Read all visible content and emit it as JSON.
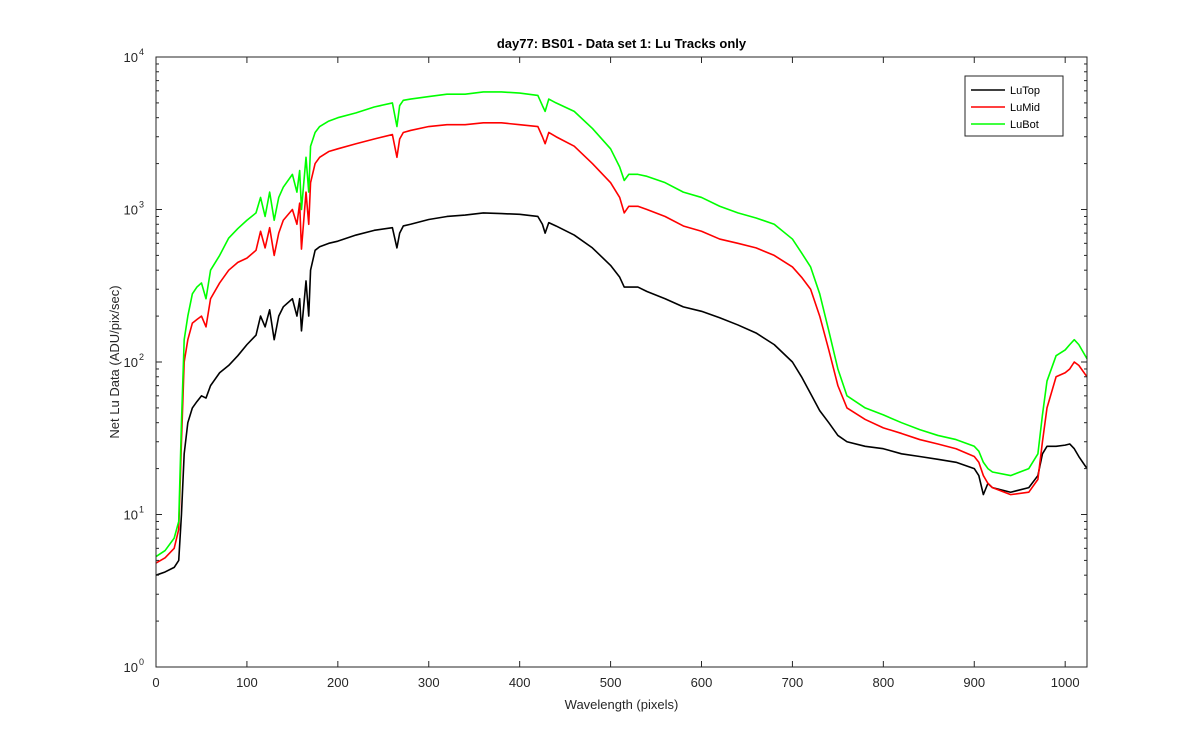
{
  "chart_data": {
    "type": "line",
    "title": "day77: BS01 - Data set 1: Lu Tracks only",
    "xlabel": "Wavelength (pixels)",
    "ylabel": "Net Lu Data (ADU/pix/sec)",
    "xlim": [
      0,
      1024
    ],
    "ylim": [
      1,
      10000
    ],
    "yscale": "log",
    "grid": false,
    "legend_position": "top-right",
    "x_ticks": [
      0,
      100,
      200,
      300,
      400,
      500,
      600,
      700,
      800,
      900,
      1000
    ],
    "y_ticks": [
      {
        "value": 1,
        "base": "10",
        "exp": "0"
      },
      {
        "value": 10,
        "base": "10",
        "exp": "1"
      },
      {
        "value": 100,
        "base": "10",
        "exp": "2"
      },
      {
        "value": 1000,
        "base": "10",
        "exp": "3"
      },
      {
        "value": 10000,
        "base": "10",
        "exp": "4"
      }
    ],
    "series": [
      {
        "name": "LuTop",
        "color": "#000000",
        "x": [
          0,
          10,
          20,
          25,
          28,
          31,
          35,
          40,
          45,
          50,
          55,
          60,
          70,
          80,
          90,
          100,
          110,
          115,
          120,
          125,
          130,
          135,
          140,
          150,
          155,
          158,
          160,
          165,
          168,
          170,
          175,
          180,
          190,
          200,
          220,
          240,
          260,
          265,
          268,
          272,
          280,
          300,
          320,
          340,
          360,
          380,
          400,
          420,
          425,
          428,
          432,
          440,
          460,
          480,
          500,
          510,
          515,
          520,
          530,
          540,
          560,
          580,
          600,
          620,
          640,
          660,
          680,
          700,
          710,
          720,
          730,
          740,
          750,
          760,
          780,
          800,
          820,
          840,
          860,
          880,
          900,
          905,
          910,
          915,
          920,
          940,
          960,
          970,
          975,
          980,
          990,
          1000,
          1005,
          1010,
          1015,
          1024
        ],
        "values": [
          4.0,
          4.2,
          4.5,
          5.0,
          10,
          25,
          40,
          50,
          55,
          60,
          58,
          70,
          85,
          95,
          110,
          130,
          150,
          200,
          170,
          220,
          140,
          200,
          230,
          260,
          200,
          260,
          160,
          340,
          200,
          400,
          540,
          570,
          600,
          620,
          680,
          730,
          760,
          560,
          700,
          780,
          800,
          860,
          900,
          920,
          950,
          940,
          930,
          900,
          800,
          700,
          820,
          780,
          680,
          560,
          430,
          360,
          310,
          310,
          310,
          290,
          260,
          230,
          215,
          195,
          175,
          155,
          130,
          100,
          80,
          62,
          48,
          40,
          33,
          30,
          28,
          27,
          25,
          24,
          23,
          22,
          20,
          18,
          13.5,
          16,
          15,
          14,
          15,
          18,
          25,
          28,
          28,
          28.5,
          29,
          27,
          24,
          20
        ]
      },
      {
        "name": "LuMid",
        "color": "#ff0000",
        "x": [
          0,
          10,
          20,
          25,
          28,
          31,
          35,
          40,
          45,
          50,
          55,
          60,
          70,
          80,
          90,
          100,
          110,
          115,
          120,
          125,
          130,
          135,
          140,
          150,
          155,
          158,
          160,
          165,
          168,
          170,
          175,
          180,
          190,
          200,
          220,
          240,
          260,
          265,
          268,
          272,
          280,
          300,
          320,
          340,
          360,
          380,
          400,
          420,
          425,
          428,
          432,
          440,
          460,
          480,
          500,
          510,
          515,
          520,
          530,
          540,
          560,
          580,
          600,
          620,
          640,
          660,
          680,
          700,
          710,
          720,
          730,
          740,
          750,
          760,
          780,
          800,
          820,
          840,
          860,
          880,
          900,
          905,
          910,
          915,
          920,
          940,
          960,
          970,
          975,
          980,
          990,
          1000,
          1005,
          1010,
          1015,
          1024
        ],
        "values": [
          4.8,
          5.2,
          6.0,
          8.0,
          30,
          100,
          140,
          180,
          190,
          200,
          170,
          260,
          330,
          400,
          450,
          480,
          540,
          720,
          560,
          760,
          500,
          700,
          850,
          1000,
          800,
          1100,
          550,
          1300,
          800,
          1500,
          2000,
          2200,
          2400,
          2500,
          2700,
          2900,
          3100,
          2200,
          2900,
          3200,
          3300,
          3500,
          3600,
          3600,
          3700,
          3700,
          3600,
          3500,
          3000,
          2700,
          3200,
          3000,
          2600,
          2000,
          1500,
          1200,
          950,
          1050,
          1050,
          1000,
          900,
          780,
          720,
          640,
          600,
          560,
          500,
          420,
          360,
          300,
          200,
          120,
          70,
          50,
          42,
          37,
          34,
          31,
          29,
          27,
          24,
          22,
          18,
          16,
          15,
          13.5,
          14,
          17,
          30,
          50,
          80,
          85,
          90,
          100,
          95,
          80
        ]
      },
      {
        "name": "LuBot",
        "color": "#00ff00",
        "x": [
          0,
          10,
          20,
          25,
          28,
          31,
          35,
          40,
          45,
          50,
          55,
          60,
          70,
          80,
          90,
          100,
          110,
          115,
          120,
          125,
          130,
          135,
          140,
          150,
          155,
          158,
          160,
          165,
          168,
          170,
          175,
          180,
          190,
          200,
          220,
          240,
          260,
          265,
          268,
          272,
          280,
          300,
          320,
          340,
          360,
          380,
          400,
          420,
          425,
          428,
          432,
          440,
          460,
          480,
          500,
          510,
          515,
          520,
          530,
          540,
          560,
          580,
          600,
          620,
          640,
          660,
          680,
          700,
          710,
          720,
          730,
          740,
          750,
          760,
          780,
          800,
          820,
          840,
          860,
          880,
          900,
          905,
          910,
          915,
          920,
          940,
          960,
          970,
          975,
          980,
          990,
          1000,
          1005,
          1010,
          1015,
          1024
        ],
        "values": [
          5.3,
          5.8,
          7.0,
          9.0,
          40,
          140,
          200,
          280,
          310,
          330,
          260,
          400,
          500,
          650,
          750,
          850,
          950,
          1200,
          900,
          1300,
          850,
          1200,
          1400,
          1700,
          1300,
          1800,
          1000,
          2200,
          1300,
          2600,
          3200,
          3500,
          3800,
          4000,
          4300,
          4700,
          5000,
          3500,
          4800,
          5200,
          5300,
          5500,
          5700,
          5700,
          5900,
          5900,
          5800,
          5600,
          4800,
          4400,
          5300,
          5000,
          4400,
          3400,
          2500,
          1900,
          1550,
          1700,
          1700,
          1650,
          1500,
          1300,
          1200,
          1050,
          950,
          880,
          800,
          640,
          520,
          420,
          280,
          160,
          90,
          60,
          50,
          45,
          40,
          36,
          33,
          31,
          28,
          26,
          22,
          20,
          19,
          18,
          20,
          25,
          45,
          75,
          110,
          120,
          130,
          140,
          130,
          105
        ]
      }
    ]
  }
}
